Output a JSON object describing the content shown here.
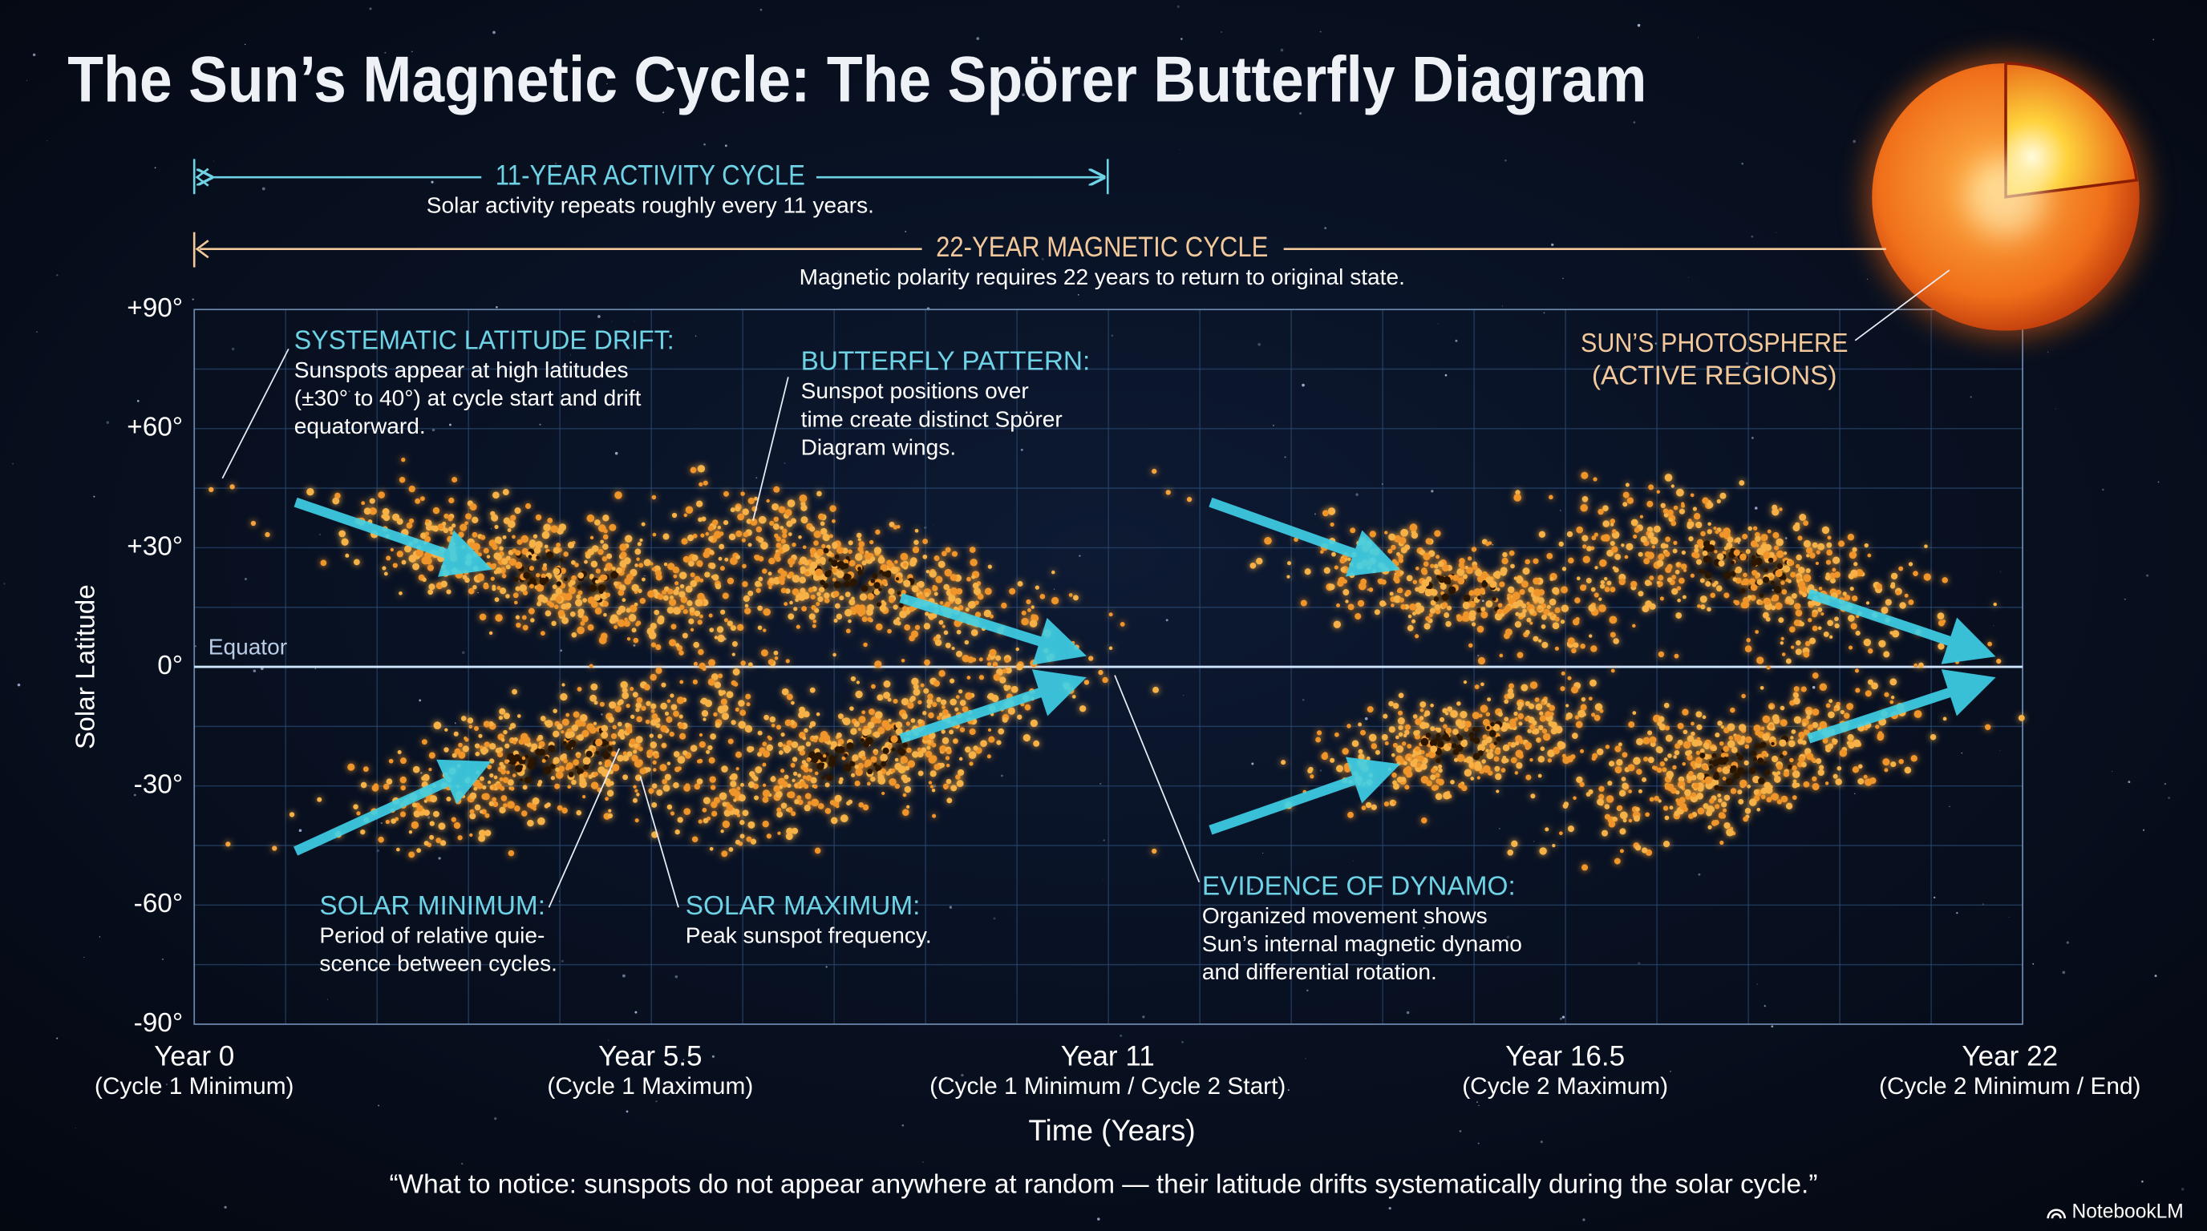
{
  "title": "The Sun’s Magnetic Cycle: The Spörer Butterfly Diagram",
  "cycles": [
    {
      "label": "11-YEAR ACTIVITY CYCLE",
      "note": "Solar activity repeats roughly every 11 years."
    },
    {
      "label": "22-YEAR MAGNETIC CYCLE",
      "note": "Magnetic polarity requires 22 years to return to original state."
    }
  ],
  "axes": {
    "y_label": "Solar Latitude",
    "y_ticks": [
      "+90°",
      "+60°",
      "+30°",
      "0°",
      "-30°",
      "-60°",
      "-90°"
    ],
    "equator": "Equator",
    "x_label": "Time (Years)",
    "x_ticks": [
      {
        "label": "Year 0",
        "sub": "(Cycle 1 Minimum)"
      },
      {
        "label": "Year 5.5",
        "sub": "(Cycle 1 Maximum)"
      },
      {
        "label": "Year 11",
        "sub": "(Cycle 1 Minimum / Cycle 2 Start)"
      },
      {
        "label": "Year 16.5",
        "sub": "(Cycle 2 Maximum)"
      },
      {
        "label": "Year 22",
        "sub": "(Cycle 2 Minimum / End)"
      }
    ]
  },
  "annotations": [
    {
      "title": "SYSTEMATIC LATITUDE DRIFT:",
      "lines": [
        "Sunspots appear at high latitudes",
        "(±30° to 40°) at cycle start and drift",
        "equatorward."
      ]
    },
    {
      "title": "BUTTERFLY PATTERN:",
      "lines": [
        "Sunspot positions over",
        "time create distinct Spörer",
        "Diagram wings."
      ]
    },
    {
      "title": "SOLAR MINIMUM:",
      "lines": [
        "Period of relative quie-",
        "scence between cycles."
      ]
    },
    {
      "title": "SOLAR MAXIMUM:",
      "lines": [
        "Peak sunspot frequency."
      ]
    },
    {
      "title": "EVIDENCE OF DYNAMO:",
      "lines": [
        "Organized movement shows",
        "Sun’s internal magnetic dynamo",
        "and differential rotation."
      ]
    }
  ],
  "photosphere": [
    "SUN’S PHOTOSPHERE",
    "(ACTIVE REGIONS)"
  ],
  "footer": "“What to notice: sunspots do not appear anywhere at random — their latitude drifts systematically during the solar cycle.”",
  "brand": "NotebookLM"
}
